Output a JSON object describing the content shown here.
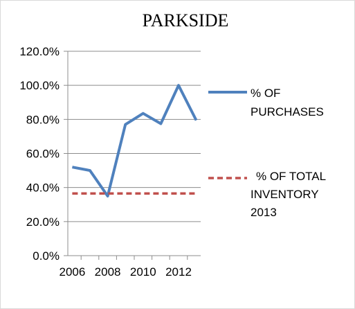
{
  "chart_data": {
    "type": "line",
    "title": "PARKSIDE",
    "xlabel": "",
    "ylabel": "",
    "x_ticks": [
      "2006",
      "2008",
      "2010",
      "2012"
    ],
    "y_ticks": [
      "0.0%",
      "20.0%",
      "40.0%",
      "60.0%",
      "80.0%",
      "100.0%",
      "120.0%"
    ],
    "xlim": [
      2005.75,
      2013.25
    ],
    "ylim": [
      0,
      120
    ],
    "grid": "horizontal",
    "legend_position": "right",
    "series": [
      {
        "name": "% OF PURCHASES",
        "legend_lines": [
          "% OF",
          "PURCHASES"
        ],
        "color": "#4f81bd",
        "style": "solid",
        "x": [
          2006,
          2007,
          2008,
          2009,
          2010,
          2011,
          2012,
          2013
        ],
        "values": [
          52,
          50,
          35,
          77,
          83.5,
          77.5,
          100,
          79.5
        ]
      },
      {
        "name": "% OF TOTAL INVENTORY 2013",
        "legend_lines": [
          "% OF TOTAL",
          "INVENTORY",
          "2013"
        ],
        "color": "#c0504d",
        "style": "dashed",
        "x": [
          2006,
          2013
        ],
        "values": [
          36.5,
          36.5
        ]
      }
    ]
  }
}
